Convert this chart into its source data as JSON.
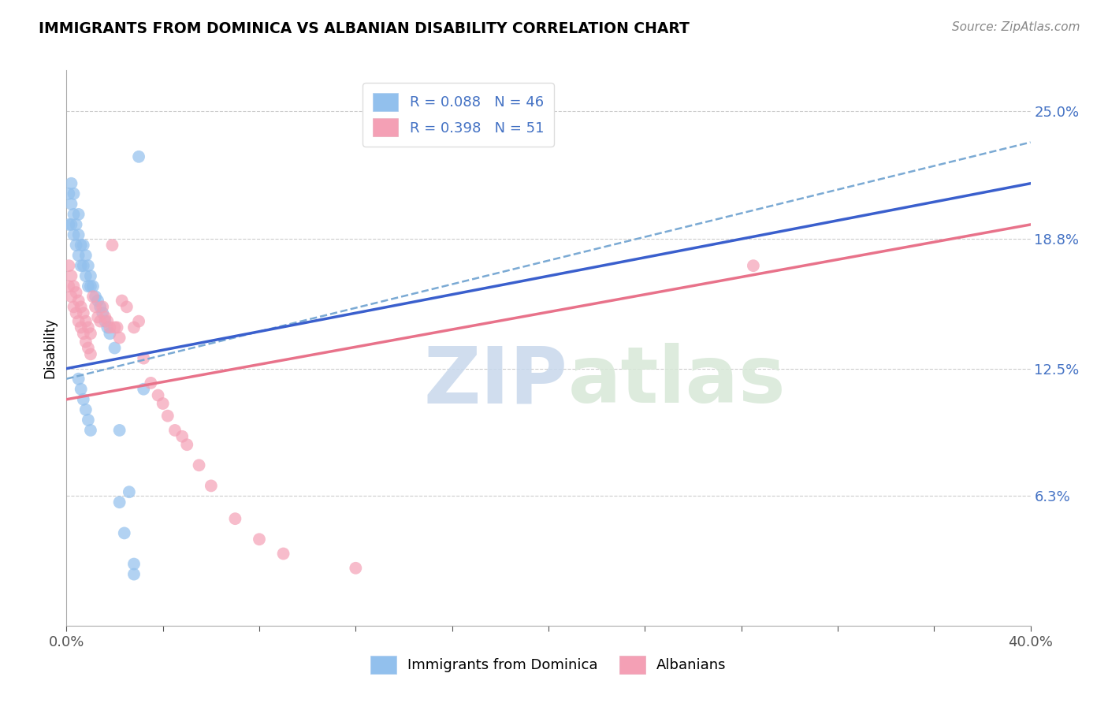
{
  "title": "IMMIGRANTS FROM DOMINICA VS ALBANIAN DISABILITY CORRELATION CHART",
  "source": "Source: ZipAtlas.com",
  "ylabel": "Disability",
  "ytick_labels": [
    "6.3%",
    "12.5%",
    "18.8%",
    "25.0%"
  ],
  "ytick_values": [
    0.063,
    0.125,
    0.188,
    0.25
  ],
  "xmin": 0.0,
  "xmax": 0.4,
  "ymin": 0.0,
  "ymax": 0.27,
  "legend_r1": "R = 0.088",
  "legend_n1": "N = 46",
  "legend_r2": "R = 0.398",
  "legend_n2": "N = 51",
  "blue_color": "#92C0ED",
  "pink_color": "#F4A0B5",
  "trend_blue_solid_color": "#3A5FCD",
  "trend_blue_dash_color": "#7BAAD4",
  "trend_pink_color": "#E8728A",
  "label1": "Immigrants from Dominica",
  "label2": "Albanians",
  "watermark_zip": "ZIP",
  "watermark_atlas": "atlas",
  "blue_x": [
    0.001,
    0.001,
    0.002,
    0.002,
    0.002,
    0.003,
    0.003,
    0.003,
    0.004,
    0.004,
    0.005,
    0.005,
    0.005,
    0.006,
    0.006,
    0.007,
    0.007,
    0.008,
    0.008,
    0.009,
    0.009,
    0.01,
    0.01,
    0.011,
    0.012,
    0.013,
    0.014,
    0.015,
    0.016,
    0.017,
    0.018,
    0.02,
    0.022,
    0.024,
    0.026,
    0.028,
    0.03,
    0.032,
    0.022,
    0.028,
    0.005,
    0.006,
    0.007,
    0.008,
    0.009,
    0.01
  ],
  "blue_y": [
    0.195,
    0.21,
    0.195,
    0.205,
    0.215,
    0.19,
    0.2,
    0.21,
    0.185,
    0.195,
    0.18,
    0.19,
    0.2,
    0.175,
    0.185,
    0.175,
    0.185,
    0.17,
    0.18,
    0.165,
    0.175,
    0.165,
    0.17,
    0.165,
    0.16,
    0.158,
    0.155,
    0.152,
    0.148,
    0.145,
    0.142,
    0.135,
    0.095,
    0.045,
    0.065,
    0.025,
    0.228,
    0.115,
    0.06,
    0.03,
    0.12,
    0.115,
    0.11,
    0.105,
    0.1,
    0.095
  ],
  "pink_x": [
    0.001,
    0.001,
    0.002,
    0.002,
    0.003,
    0.003,
    0.004,
    0.004,
    0.005,
    0.005,
    0.006,
    0.006,
    0.007,
    0.007,
    0.008,
    0.008,
    0.009,
    0.009,
    0.01,
    0.01,
    0.011,
    0.012,
    0.013,
    0.014,
    0.015,
    0.016,
    0.017,
    0.018,
    0.019,
    0.02,
    0.021,
    0.022,
    0.023,
    0.025,
    0.028,
    0.03,
    0.032,
    0.035,
    0.038,
    0.04,
    0.042,
    0.045,
    0.048,
    0.05,
    0.055,
    0.06,
    0.07,
    0.08,
    0.09,
    0.12,
    0.285
  ],
  "pink_y": [
    0.165,
    0.175,
    0.16,
    0.17,
    0.155,
    0.165,
    0.152,
    0.162,
    0.148,
    0.158,
    0.145,
    0.155,
    0.142,
    0.152,
    0.138,
    0.148,
    0.135,
    0.145,
    0.132,
    0.142,
    0.16,
    0.155,
    0.15,
    0.148,
    0.155,
    0.15,
    0.148,
    0.145,
    0.185,
    0.145,
    0.145,
    0.14,
    0.158,
    0.155,
    0.145,
    0.148,
    0.13,
    0.118,
    0.112,
    0.108,
    0.102,
    0.095,
    0.092,
    0.088,
    0.078,
    0.068,
    0.052,
    0.042,
    0.035,
    0.028,
    0.175
  ],
  "trend_blue_start_x": 0.0,
  "trend_blue_start_y": 0.125,
  "trend_blue_end_x": 0.4,
  "trend_blue_end_y": 0.215,
  "trend_dash_start_x": 0.0,
  "trend_dash_start_y": 0.12,
  "trend_dash_end_x": 0.4,
  "trend_dash_end_y": 0.235,
  "trend_pink_start_x": 0.0,
  "trend_pink_start_y": 0.11,
  "trend_pink_end_x": 0.4,
  "trend_pink_end_y": 0.195
}
